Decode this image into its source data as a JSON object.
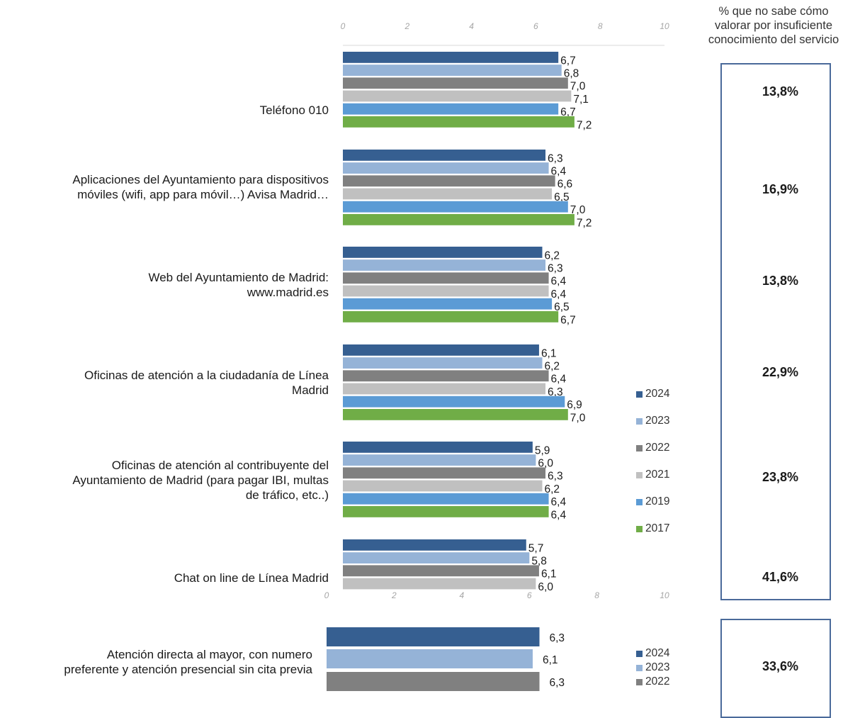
{
  "header": {
    "pct_title": "% que no sabe cómo\nvalorar por insuficiente\nconocimiento del servicio"
  },
  "colors": {
    "2024": "#365f91",
    "2023": "#95b3d7",
    "2022": "#808080",
    "2021": "#c0c0c0",
    "2019": "#5b9bd5",
    "2017": "#70ad47"
  },
  "chart_data": [
    {
      "type": "bar",
      "orientation": "horizontal",
      "xlim": [
        0,
        10
      ],
      "xticks": [
        "0",
        "2",
        "4",
        "6",
        "8",
        "10"
      ],
      "series_names": [
        "2024",
        "2023",
        "2022",
        "2021",
        "2019",
        "2017"
      ],
      "legend": [
        "2024",
        "2023",
        "2022",
        "2021",
        "2019",
        "2017"
      ],
      "categories": [
        {
          "label": "Teléfono 010",
          "values": [
            6.7,
            6.8,
            7.0,
            7.1,
            6.7,
            7.2
          ],
          "labels": [
            "6,7",
            "6,8",
            "7,0",
            "7,1",
            "6,7",
            "7,2"
          ],
          "pct": "13,8%"
        },
        {
          "label": "Aplicaciones del Ayuntamiento para dispositivos\nmóviles (wifi, app para móvil…) Avisa Madrid…",
          "values": [
            6.3,
            6.4,
            6.6,
            6.5,
            7.0,
            7.2
          ],
          "labels": [
            "6,3",
            "6,4",
            "6,6",
            "6,5",
            "7,0",
            "7,2"
          ],
          "pct": "16,9%"
        },
        {
          "label": "Web del Ayuntamiento de Madrid:\nwww.madrid.es",
          "values": [
            6.2,
            6.3,
            6.4,
            6.4,
            6.5,
            6.7
          ],
          "labels": [
            "6,2",
            "6,3",
            "6,4",
            "6,4",
            "6,5",
            "6,7"
          ],
          "pct": "13,8%"
        },
        {
          "label": "Oficinas de atención a la ciudadanía de Línea\nMadrid",
          "values": [
            6.1,
            6.2,
            6.4,
            6.3,
            6.9,
            7.0
          ],
          "labels": [
            "6,1",
            "6,2",
            "6,4",
            "6,3",
            "6,9",
            "7,0"
          ],
          "pct": "22,9%"
        },
        {
          "label": "Oficinas de atención al contribuyente del\nAyuntamiento de Madrid (para pagar IBI, multas\nde  tráfico, etc..)",
          "values": [
            5.9,
            6.0,
            6.3,
            6.2,
            6.4,
            6.4
          ],
          "labels": [
            "5,9",
            "6,0",
            "6,3",
            "6,2",
            "6,4",
            "6,4"
          ],
          "pct": "23,8%"
        },
        {
          "label": "Chat on line de Línea Madrid",
          "values": [
            5.7,
            5.8,
            6.1,
            6.0
          ],
          "labels": [
            "5,7",
            "5,8",
            "6,1",
            "6,0"
          ],
          "pct": "41,6%"
        }
      ]
    },
    {
      "type": "bar",
      "orientation": "horizontal",
      "xlim": [
        0,
        10
      ],
      "xticks": [
        "0",
        "2",
        "4",
        "6",
        "8",
        "10"
      ],
      "series_names": [
        "2024",
        "2023",
        "2022"
      ],
      "legend": [
        "2024",
        "2023",
        "2022"
      ],
      "categories": [
        {
          "label": "Atención directa al mayor, con numero\npreferente y atención presencial sin cita previa",
          "values": [
            6.3,
            6.1,
            6.3
          ],
          "labels": [
            "6,3",
            "6,1",
            "6,3"
          ],
          "pct": "33,6%"
        }
      ]
    }
  ]
}
